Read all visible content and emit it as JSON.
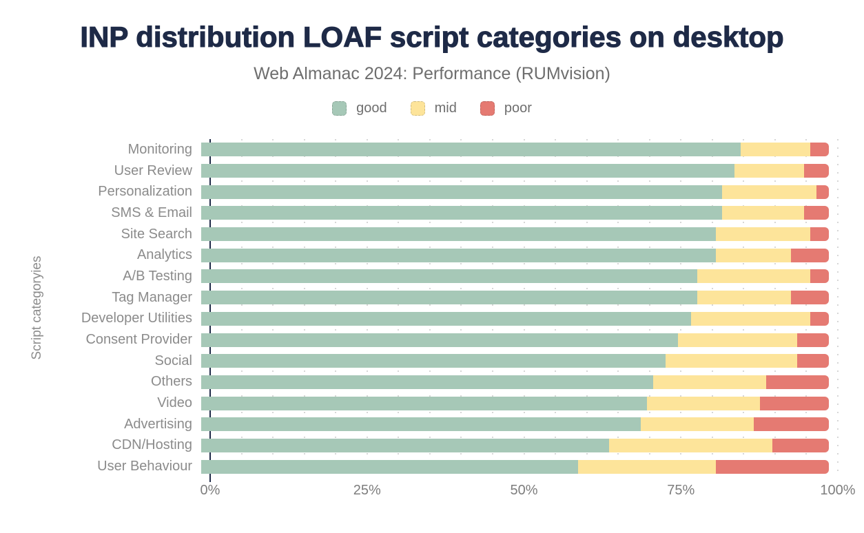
{
  "title": "INP distribution LOAF script categories on desktop",
  "subtitle": "Web Almanac 2024: Performance (RUMvision)",
  "legend": [
    {
      "label": "good",
      "color": "#a6c8b7"
    },
    {
      "label": "mid",
      "color": "#fde49a"
    },
    {
      "label": "poor",
      "color": "#e57a72"
    }
  ],
  "colors": {
    "good": "#a6c8b7",
    "mid": "#fde49a",
    "poor": "#e57a72",
    "title_navy": "#1e2a47",
    "axis_line": "#1e2a47",
    "label_gray": "#8b8b8b",
    "tick_gray": "#7d7d7d",
    "gridline_gray": "#cfcfcf",
    "background": "#ffffff"
  },
  "chart_data": {
    "type": "bar",
    "orientation": "horizontal",
    "stacked": true,
    "unit": "%",
    "title": "INP distribution LOAF script categories on desktop",
    "subtitle": "Web Almanac 2024: Performance (RUMvision)",
    "ylabel": "Script categoryies",
    "xlabel": "",
    "xlim": [
      0,
      100
    ],
    "x_tick_labels": [
      "0%",
      "25%",
      "50%",
      "75%",
      "100%"
    ],
    "grid": "dotted vertical lines every 5%",
    "legend_position": "top center",
    "categories": [
      "Monitoring",
      "User Review",
      "Personalization",
      "SMS & Email",
      "Site Search",
      "Analytics",
      "A/B Testing",
      "Tag Manager",
      "Developer Utilities",
      "Consent Provider",
      "Social",
      "Others",
      "Video",
      "Advertising",
      "CDN/Hosting",
      "User Behaviour"
    ],
    "series": [
      {
        "name": "good",
        "color": "#a6c8b7",
        "values": [
          86,
          85,
          83,
          83,
          82,
          82,
          79,
          79,
          78,
          76,
          74,
          72,
          71,
          70,
          65,
          60
        ]
      },
      {
        "name": "mid",
        "color": "#fde49a",
        "values": [
          11,
          11,
          15,
          13,
          15,
          12,
          18,
          15,
          19,
          19,
          21,
          18,
          18,
          18,
          26,
          22
        ]
      },
      {
        "name": "poor",
        "color": "#e57a72",
        "values": [
          3,
          4,
          2,
          4,
          3,
          6,
          3,
          6,
          3,
          5,
          5,
          10,
          11,
          12,
          9,
          18
        ]
      }
    ]
  }
}
